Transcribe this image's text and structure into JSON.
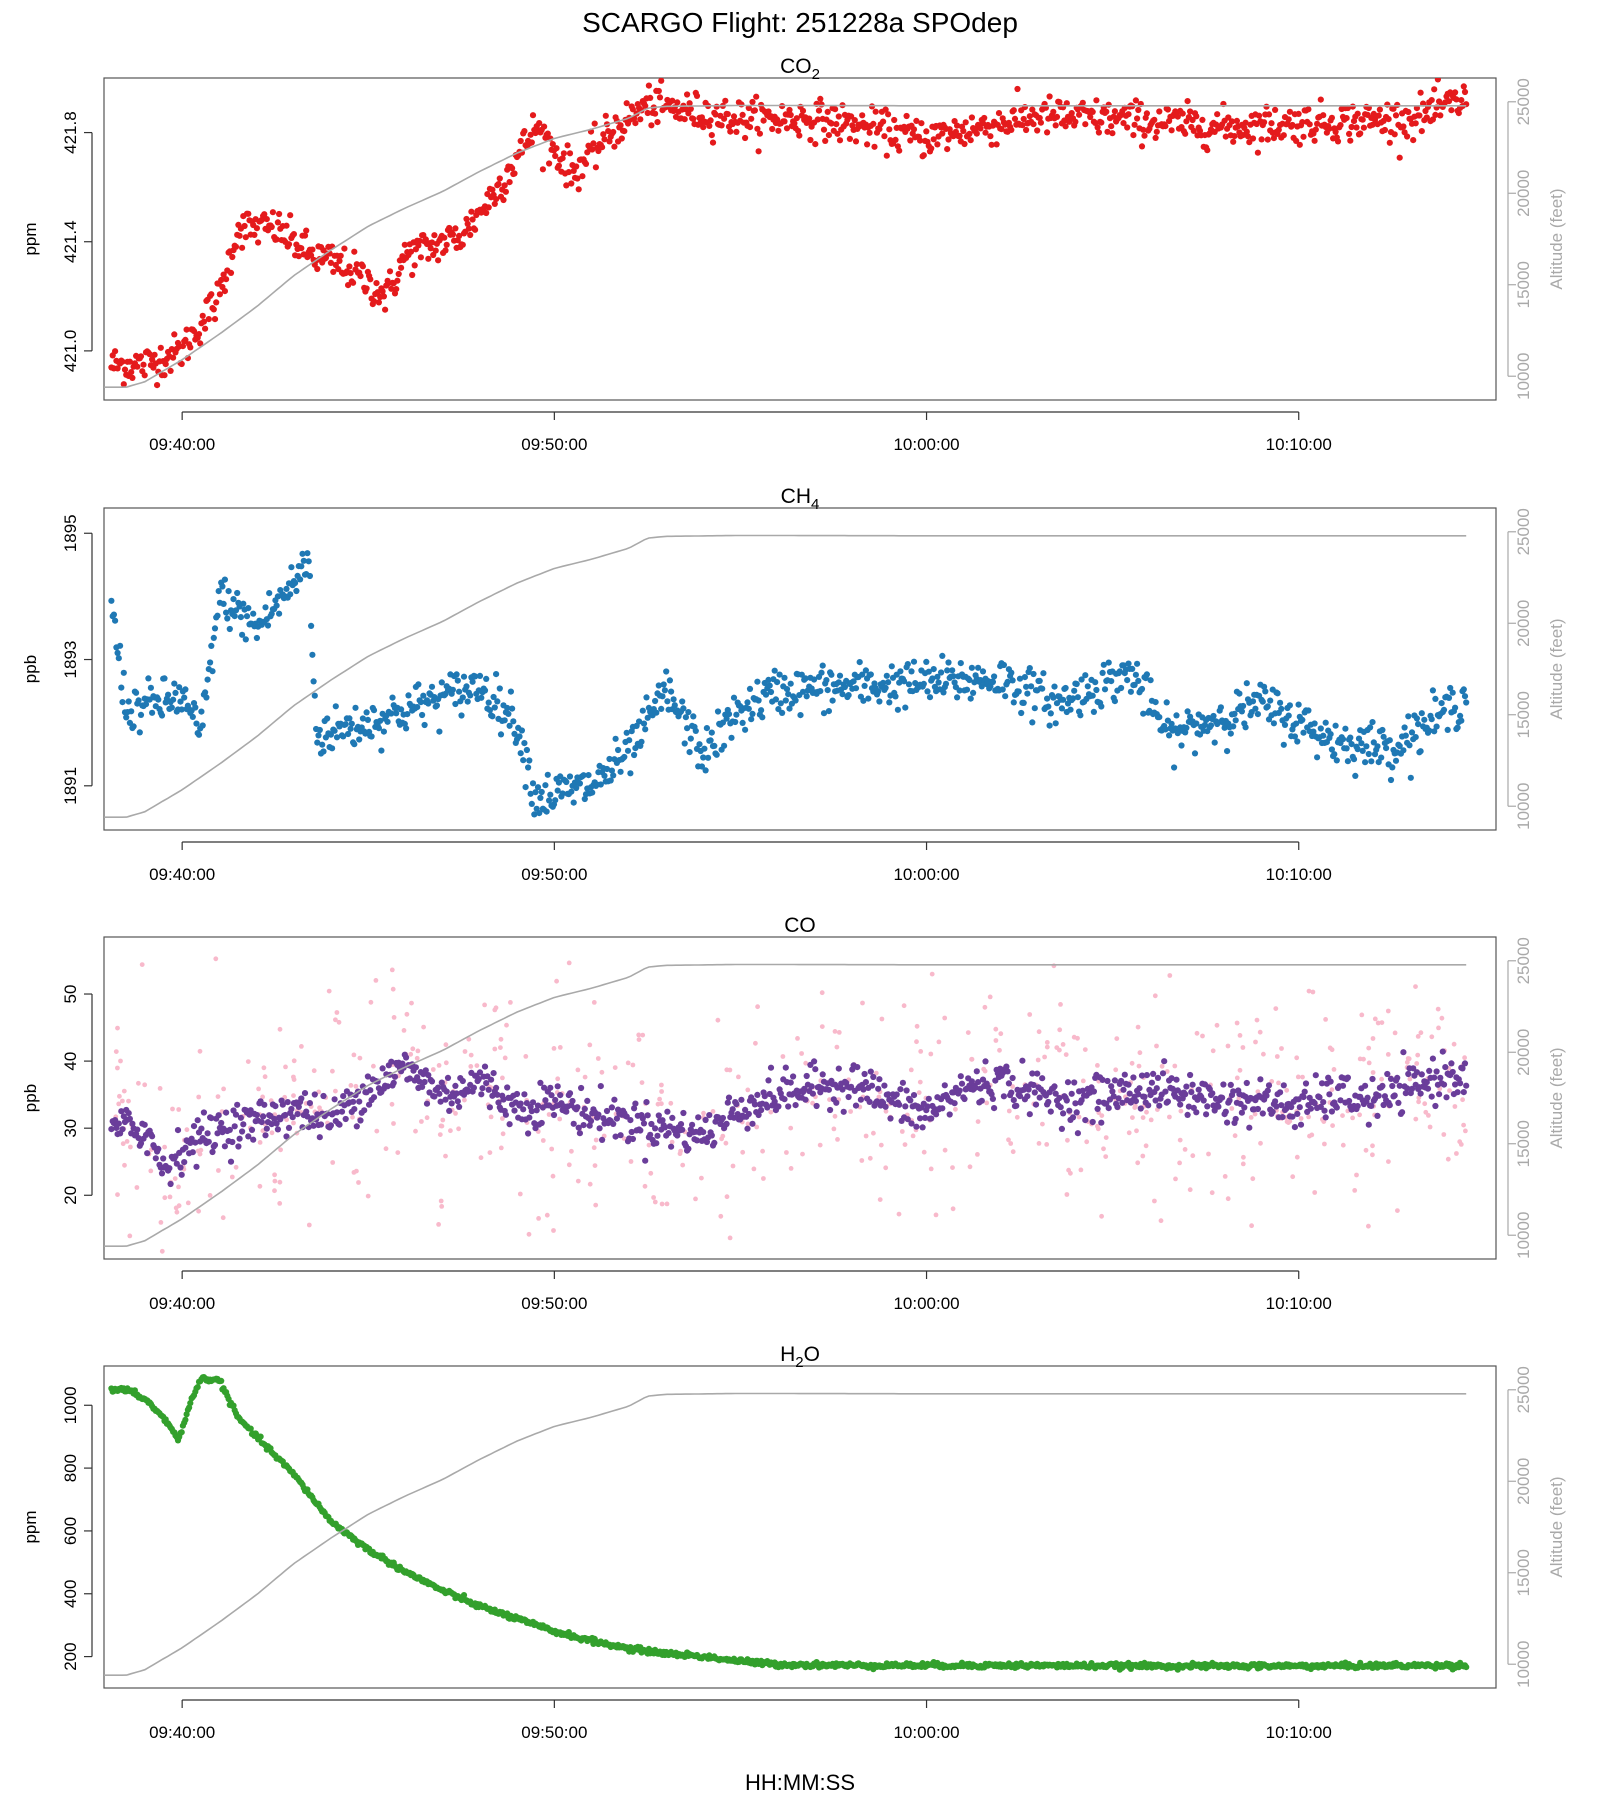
{
  "figure_title": "SCARGO Flight: 251228a  SPOdep",
  "x_axis_label": "HH:MM:SS",
  "chart_data": [
    {
      "type": "scatter",
      "title": "CO2",
      "title_main": "CO",
      "title_sub": "2",
      "ylabel": "ppm",
      "y2label": "Altitude (feet)",
      "color": "#e41a1c",
      "ylim": [
        420.82,
        422.0
      ],
      "yticks": [
        421.0,
        421.4,
        421.8
      ],
      "ytick_labels": [
        "421.0",
        "421.4",
        "421.8"
      ],
      "xticks": [
        "09:40:00",
        "09:50:00",
        "10:00:00",
        "10:10:00"
      ],
      "x_range_min": [
        -2.1,
        35.3
      ],
      "series_min": [
        -1.9,
        34.5
      ],
      "series_anchors": [
        [
          -2.0,
          420.95
        ],
        [
          -1.0,
          420.95
        ],
        [
          0.0,
          421.0
        ],
        [
          1.0,
          421.2
        ],
        [
          1.5,
          421.45
        ],
        [
          2.5,
          421.45
        ],
        [
          3.5,
          421.35
        ],
        [
          4.5,
          421.3
        ],
        [
          5.5,
          421.2
        ],
        [
          6.0,
          421.35
        ],
        [
          7.5,
          421.42
        ],
        [
          8.5,
          421.6
        ],
        [
          9.5,
          421.82
        ],
        [
          10.5,
          421.65
        ],
        [
          11.5,
          421.8
        ],
        [
          12.5,
          421.9
        ],
        [
          15.0,
          421.85
        ],
        [
          17.0,
          421.85
        ],
        [
          20.0,
          421.78
        ],
        [
          23.0,
          421.86
        ],
        [
          25.0,
          421.85
        ],
        [
          28.0,
          421.82
        ],
        [
          31.0,
          421.84
        ],
        [
          33.0,
          421.85
        ],
        [
          34.5,
          421.92
        ]
      ],
      "noise": 0.035
    },
    {
      "type": "scatter",
      "title": "CH4",
      "title_main": "CH",
      "title_sub": "4",
      "ylabel": "ppb",
      "y2label": "Altitude (feet)",
      "color": "#1f78b4",
      "ylim": [
        1890.3,
        1895.4
      ],
      "yticks": [
        1891,
        1893,
        1895
      ],
      "ytick_labels": [
        "1891",
        "1893",
        "1895"
      ],
      "xticks": [
        "09:40:00",
        "09:50:00",
        "10:00:00",
        "10:10:00"
      ],
      "x_range_min": [
        -2.1,
        35.3
      ],
      "series_min": [
        -1.9,
        34.5
      ],
      "series_anchors": [
        [
          -2.0,
          1894.3
        ],
        [
          -1.5,
          1892.2
        ],
        [
          0.0,
          1892.4
        ],
        [
          0.5,
          1891.8
        ],
        [
          1.0,
          1894.0
        ],
        [
          2.0,
          1893.5
        ],
        [
          3.0,
          1894.2
        ],
        [
          3.4,
          1894.6
        ],
        [
          3.6,
          1891.8
        ],
        [
          5.0,
          1892.0
        ],
        [
          7.0,
          1892.4
        ],
        [
          8.0,
          1892.6
        ],
        [
          9.0,
          1892.0
        ],
        [
          9.5,
          1890.8
        ],
        [
          11.0,
          1891.0
        ],
        [
          12.0,
          1891.5
        ],
        [
          13.0,
          1892.5
        ],
        [
          14.0,
          1891.5
        ],
        [
          15.0,
          1892.2
        ],
        [
          16.0,
          1892.5
        ],
        [
          19.0,
          1892.6
        ],
        [
          22.0,
          1892.7
        ],
        [
          23.5,
          1892.3
        ],
        [
          25.5,
          1892.8
        ],
        [
          26.5,
          1891.8
        ],
        [
          29.0,
          1892.3
        ],
        [
          31.0,
          1891.7
        ],
        [
          32.5,
          1891.6
        ],
        [
          34.5,
          1892.4
        ]
      ],
      "noise": 0.18
    },
    {
      "type": "scatter",
      "title": "CO",
      "title_main": "CO",
      "title_sub": "",
      "ylabel": "ppb",
      "y2label": "Altitude (feet)",
      "color": "#6a3d9a",
      "raw_color": "#f8b9cb",
      "ylim": [
        10.5,
        58.5
      ],
      "yticks": [
        20,
        30,
        40,
        50
      ],
      "ytick_labels": [
        "20",
        "30",
        "40",
        "50"
      ],
      "xticks": [
        "09:40:00",
        "09:50:00",
        "10:00:00",
        "10:10:00"
      ],
      "x_range_min": [
        -2.1,
        35.3
      ],
      "series_min": [
        -1.9,
        34.5
      ],
      "series_anchors": [
        [
          -2.0,
          30.0
        ],
        [
          -1.0,
          30.0
        ],
        [
          -0.5,
          24.0
        ],
        [
          0.0,
          27.0
        ],
        [
          1.0,
          30.0
        ],
        [
          2.0,
          31.0
        ],
        [
          3.0,
          33.0
        ],
        [
          4.0,
          31.0
        ],
        [
          5.0,
          36.0
        ],
        [
          6.0,
          39.0
        ],
        [
          7.0,
          35.0
        ],
        [
          8.0,
          37.0
        ],
        [
          9.0,
          33.0
        ],
        [
          10.0,
          34.0
        ],
        [
          11.0,
          32.0
        ],
        [
          12.0,
          31.0
        ],
        [
          13.0,
          30.0
        ],
        [
          14.0,
          29.0
        ],
        [
          15.0,
          33.0
        ],
        [
          16.0,
          35.0
        ],
        [
          17.0,
          36.0
        ],
        [
          18.0,
          37.0
        ],
        [
          19.0,
          34.0
        ],
        [
          20.0,
          32.0
        ],
        [
          21.0,
          36.0
        ],
        [
          22.0,
          37.0
        ],
        [
          23.0,
          35.0
        ],
        [
          24.0,
          34.0
        ],
        [
          25.0,
          35.0
        ],
        [
          26.0,
          36.0
        ],
        [
          27.0,
          35.0
        ],
        [
          28.0,
          34.0
        ],
        [
          29.0,
          34.0
        ],
        [
          30.0,
          33.0
        ],
        [
          31.0,
          35.0
        ],
        [
          32.0,
          34.0
        ],
        [
          33.0,
          36.0
        ],
        [
          34.0,
          38.0
        ],
        [
          34.5,
          38.0
        ]
      ],
      "noise": 1.6
    },
    {
      "type": "scatter",
      "title": "H2O",
      "title_main": "H",
      "title_sub": "2",
      "title_tail": "O",
      "ylabel": "ppm",
      "y2label": "Altitude (feet)",
      "color": "#33a02c",
      "ylim": [
        100,
        1125
      ],
      "yticks": [
        200,
        400,
        600,
        800,
        1000
      ],
      "ytick_labels": [
        "200",
        "400",
        "600",
        "800",
        "1000"
      ],
      "xticks": [
        "09:40:00",
        "09:50:00",
        "10:00:00",
        "10:10:00"
      ],
      "x_range_min": [
        -2.1,
        35.3
      ],
      "series_min": [
        -1.9,
        34.5
      ],
      "series_anchors": [
        [
          -2.0,
          1045
        ],
        [
          -1.5,
          1050
        ],
        [
          -1.0,
          1020
        ],
        [
          -0.5,
          960
        ],
        [
          -0.1,
          890
        ],
        [
          0.2,
          1000
        ],
        [
          0.5,
          1085
        ],
        [
          1.0,
          1080
        ],
        [
          1.5,
          960
        ],
        [
          2.0,
          900
        ],
        [
          3.0,
          780
        ],
        [
          4.0,
          630
        ],
        [
          5.0,
          540
        ],
        [
          6.0,
          470
        ],
        [
          7.0,
          410
        ],
        [
          8.0,
          360
        ],
        [
          9.0,
          320
        ],
        [
          10.0,
          280
        ],
        [
          11.0,
          250
        ],
        [
          12.0,
          225
        ],
        [
          13.0,
          210
        ],
        [
          14.0,
          200
        ],
        [
          15.0,
          185
        ],
        [
          16.0,
          175
        ],
        [
          18.0,
          172
        ],
        [
          22.0,
          172
        ],
        [
          26.0,
          170
        ],
        [
          30.0,
          170
        ],
        [
          34.5,
          172
        ]
      ],
      "noise": 4
    }
  ],
  "altitude": {
    "y2lim": [
      8700,
      26300
    ],
    "y2ticks": [
      10000,
      15000,
      20000,
      25000
    ],
    "y2tick_labels": [
      "10000",
      "15000",
      "20000",
      "25000"
    ],
    "profile_min_ft": [
      [
        -2.1,
        9400
      ],
      [
        -1.5,
        9400
      ],
      [
        -1.0,
        9700
      ],
      [
        -0.5,
        10300
      ],
      [
        0.0,
        10900
      ],
      [
        1.0,
        12300
      ],
      [
        2.0,
        13800
      ],
      [
        3.0,
        15500
      ],
      [
        4.0,
        16900
      ],
      [
        5.0,
        18200
      ],
      [
        6.0,
        19200
      ],
      [
        7.0,
        20100
      ],
      [
        8.0,
        21200
      ],
      [
        9.0,
        22200
      ],
      [
        10.0,
        23000
      ],
      [
        11.0,
        23500
      ],
      [
        12.0,
        24100
      ],
      [
        12.5,
        24650
      ],
      [
        13.0,
        24750
      ],
      [
        15.0,
        24800
      ],
      [
        20.0,
        24780
      ],
      [
        25.0,
        24780
      ],
      [
        30.0,
        24780
      ],
      [
        34.5,
        24780
      ]
    ]
  }
}
